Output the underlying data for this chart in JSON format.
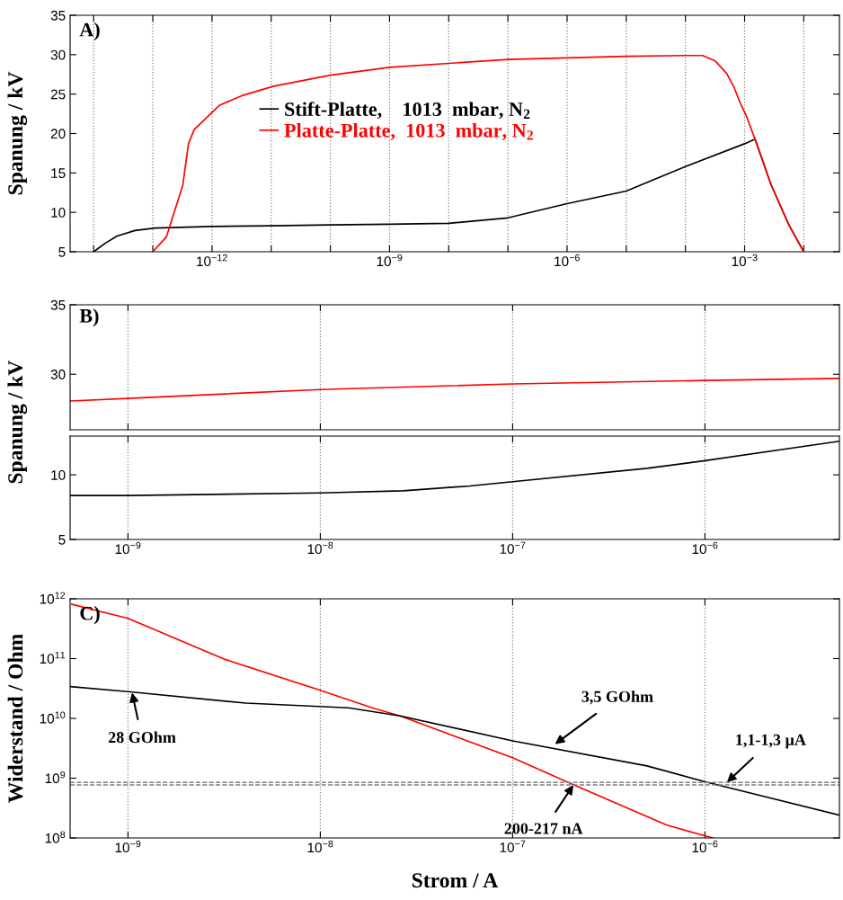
{
  "chart_data": [
    {
      "type": "line",
      "ylabel": "Spanung / kV",
      "annotations": [
        "A)"
      ],
      "log": "x",
      "grid": "x",
      "legend": "center",
      "xlim": [
        4e-15,
        0.04
      ],
      "xticks": [
        {
          "value": 1e-14,
          "label": null
        },
        {
          "value": 1e-13,
          "label": null
        },
        {
          "value": 1e-12,
          "label": "10$^{−12}$"
        },
        {
          "value": 1e-11,
          "label": null
        },
        {
          "value": 1e-10,
          "label": null
        },
        {
          "value": 1e-09,
          "label": "10$^{−9}$"
        },
        {
          "value": 1e-08,
          "label": null
        },
        {
          "value": 1e-07,
          "label": null
        },
        {
          "value": 1e-06,
          "label": "10$^{−6}$"
        },
        {
          "value": 1e-05,
          "label": null
        },
        {
          "value": 0.0001,
          "label": null
        },
        {
          "value": 0.001,
          "label": "10$^{−3}$"
        },
        {
          "value": 0.01,
          "label": null
        }
      ],
      "ylim": [
        5,
        35
      ],
      "yticks": [
        5,
        10,
        15,
        20,
        25,
        30,
        35
      ],
      "series": [
        {
          "name": "Stift-Platte,    1013  mbar, N$_{2}$",
          "color": "#000000",
          "x": [
            1e-14,
            1.58e-14,
            2.5e-14,
            5e-14,
            1.1e-13,
            1e-12,
            1e-11,
            1e-10,
            1e-09,
            1e-08,
            1e-07,
            1e-06,
            1e-05,
            0.0001,
            0.001,
            0.0015,
            0.0028,
            0.0056,
            0.01
          ],
          "values": [
            5,
            6.1,
            7.0,
            7.7,
            8.0,
            8.2,
            8.3,
            8.4,
            8.5,
            8.6,
            9.3,
            11.1,
            12.7,
            15.8,
            18.7,
            19.3,
            13.5,
            8.4,
            5
          ]
        },
        {
          "name": "Platte-Platte,  1013  mbar, N$_{2}$",
          "color": "#ff0000",
          "x": [
            1e-13,
            1.7e-13,
            3.2e-13,
            4e-13,
            5e-13,
            1.35e-12,
            3.2e-12,
            1.1e-11,
            1e-10,
            1e-09,
            1e-08,
            1e-07,
            1e-06,
            1e-05,
            0.0001,
            0.000195,
            0.00032,
            0.0005,
            0.00066,
            0.00083,
            0.0011,
            0.0015,
            0.0028,
            0.0056,
            0.01
          ],
          "values": [
            5,
            6.9,
            13.4,
            18.7,
            20.5,
            23.6,
            24.8,
            26,
            27.4,
            28.4,
            28.9,
            29.4,
            29.6,
            29.8,
            29.9,
            29.9,
            29.2,
            27.6,
            25.9,
            24.0,
            22.0,
            19.3,
            13.5,
            8.4,
            5
          ]
        }
      ]
    },
    {
      "type": "line",
      "ylabel": "Spanung / kV",
      "annotations": [
        "B)"
      ],
      "log": "x",
      "grid": "x",
      "tick_labels": "y",
      "xlim": [
        5e-10,
        5e-06
      ],
      "xticks": [
        {
          "value": 1e-09,
          "label": null
        },
        {
          "value": 1e-08,
          "label": null
        },
        {
          "value": 1e-07,
          "label": null
        },
        {
          "value": 1e-06,
          "label": null
        }
      ],
      "ylim": [
        26,
        35
      ],
      "yticks": [
        30,
        35
      ],
      "series": [
        {
          "color": "#ff0000",
          "x": [
            5e-10,
            1e-09,
            1e-08,
            1e-07,
            1e-06,
            5e-06
          ],
          "values": [
            28.07,
            28.26,
            28.9,
            29.3,
            29.55,
            29.7
          ]
        }
      ]
    },
    {
      "type": "line",
      "log": "x",
      "grid": "x",
      "xlim": [
        5e-10,
        5e-06
      ],
      "xticks": [
        {
          "value": 1e-09,
          "label": "10$^{−9}$"
        },
        {
          "value": 1e-08,
          "label": "10$^{−8}$"
        },
        {
          "value": 1e-07,
          "label": "10$^{−7}$"
        },
        {
          "value": 1e-06,
          "label": "10$^{−6}$"
        }
      ],
      "ylim": [
        5,
        13
      ],
      "yticks": [
        5,
        10
      ],
      "series": [
        {
          "color": "#000000",
          "x": [
            5e-10,
            1e-09,
            1e-08,
            2.7e-08,
            6e-08,
            1e-07,
            5e-07,
            1e-06,
            5e-06
          ],
          "values": [
            8.4,
            8.4,
            8.6,
            8.77,
            9.14,
            9.47,
            10.5,
            11.1,
            12.6
          ]
        }
      ]
    },
    {
      "type": "line",
      "xlabel": "Strom / A",
      "ylabel": "Widerstand / Ohm",
      "log": "xy",
      "grid": "x",
      "annotations": [
        "C)",
        {
          "text": "28 GOhm",
          "x": 1.05e-09,
          "y": 27000000000.0
        },
        {
          "text": "3,5 GOhm",
          "x": 1.66e-07,
          "y": 3700000000.0
        },
        {
          "text": "1,1-1,3 µA",
          "x": 1.3e-06,
          "y": 850000000.0
        },
        {
          "text": "200-217 nA",
          "x": 2.07e-07,
          "y": 770000000.0
        }
      ],
      "xlim": [
        5e-10,
        5e-06
      ],
      "xticks": [
        {
          "value": 1e-09,
          "label": "10$^{−9}$"
        },
        {
          "value": 1e-08,
          "label": "10$^{−8}$"
        },
        {
          "value": 1e-07,
          "label": "10$^{−7}$"
        },
        {
          "value": 1e-06,
          "label": "10$^{−6}$"
        }
      ],
      "ylim": [
        100000000.0,
        1000000000000.0
      ],
      "yticks": [
        {
          "value": 100000000.0,
          "label": "10$^{8}$"
        },
        {
          "value": 1000000000.0,
          "label": "10$^{9}$"
        },
        {
          "value": 10000000000.0,
          "label": "10$^{10}$"
        },
        {
          "value": 100000000000.0,
          "label": "10$^{11}$"
        },
        {
          "value": 1000000000000.0,
          "label": "10$^{12}$"
        }
      ],
      "ref_lines": [
        {
          "axis": "y",
          "value": 850000000.0,
          "color": "#808080",
          "line_style": "dashed"
        },
        {
          "axis": "y",
          "value": 770000000.0,
          "color": "#808080",
          "line_style": "dashed"
        }
      ],
      "series": [
        {
          "color": "#ff0000",
          "x": [
            5.1e-10,
            1e-09,
            3.16e-09,
            1e-08,
            1.86e-08,
            2.6e-08,
            1e-07,
            2.07e-07,
            6.3e-07,
            1.1e-06
          ],
          "values": [
            810000000000.0,
            470000000000.0,
            98000000000.0,
            29500000000.0,
            15000000000.0,
            11000000000.0,
            2200000000.0,
            780000000.0,
            165000000.0,
            100000000.0
          ]
        },
        {
          "color": "#000000",
          "x": [
            5e-10,
            1e-09,
            4.1e-09,
            1.4e-08,
            2.6e-08,
            1e-07,
            5e-07,
            1e-06,
            5e-06
          ],
          "values": [
            34000000000.0,
            28000000000.0,
            18000000000.0,
            15000000000.0,
            11000000000.0,
            4200000000.0,
            1600000000.0,
            870000000.0,
            240000000.0
          ]
        }
      ]
    }
  ]
}
